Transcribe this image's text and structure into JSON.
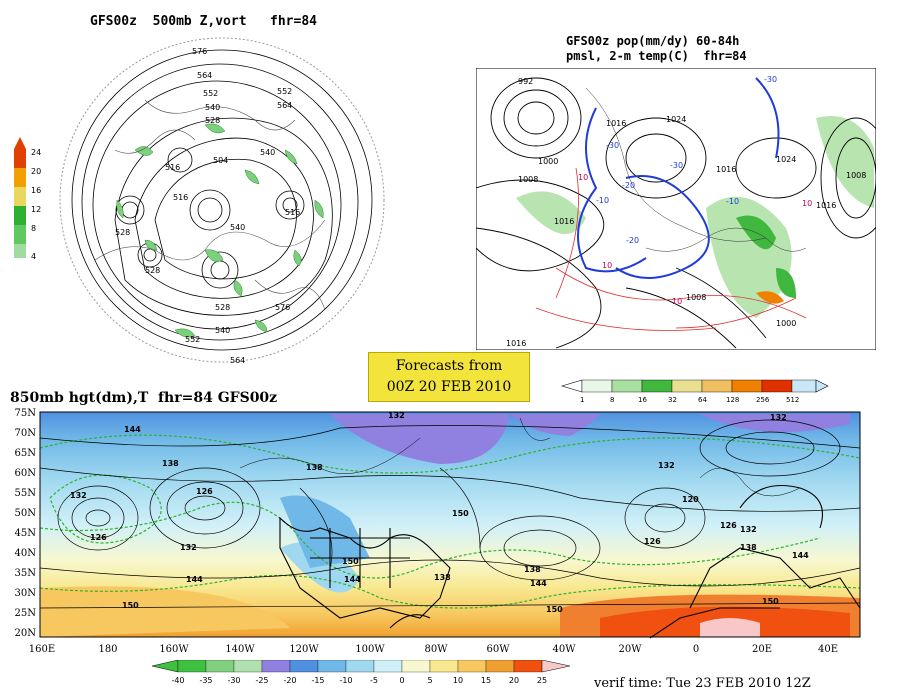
{
  "panel1": {
    "title": "GFS00z  500mb Z,vort   fhr=84",
    "contour_labels": [
      "576",
      "564",
      "552",
      "540",
      "528",
      "516",
      "504",
      "540",
      "552",
      "564",
      "528",
      "516",
      "528",
      "540",
      "552",
      "564",
      "576",
      "540",
      "516",
      "528"
    ],
    "colorbar": {
      "ticks": [
        "24",
        "20",
        "16",
        "12",
        "8",
        "4"
      ],
      "colors": [
        "#e04000",
        "#f0a000",
        "#e8d860",
        "#30b030",
        "#60c860",
        "#a0dca0"
      ]
    }
  },
  "panel2": {
    "title_line1": "GFS00z pop(mm/dy) 60-84h",
    "title_line2": "pmsl, 2-m temp(C)  fhr=84",
    "isobar_labels": [
      "992",
      "1000",
      "1008",
      "1016",
      "1024",
      "1016",
      "1008",
      "1000",
      "1016",
      "1008",
      "1016",
      "1024",
      "1016"
    ],
    "temp_labels": [
      "-30",
      "-30",
      "-20",
      "-10",
      "-10",
      "-20",
      "-30",
      "10",
      "10",
      "10",
      "10"
    ],
    "colorbar": {
      "ticks": [
        "1",
        "8",
        "16",
        "32",
        "64",
        "128",
        "256",
        "512"
      ],
      "colors": [
        "#e8f8e8",
        "#a8e0a0",
        "#40b840",
        "#e8e090",
        "#f0c060",
        "#f08000",
        "#e03000",
        "#c8e8f8"
      ]
    }
  },
  "forecast_box": {
    "line1": "Forecasts from",
    "line2": "00Z 20 FEB 2010"
  },
  "panel3": {
    "title": "850mb hgt(dm),T  fhr=84 GFS00z",
    "lat_labels": [
      "75N",
      "70N",
      "65N",
      "60N",
      "55N",
      "50N",
      "45N",
      "40N",
      "35N",
      "30N",
      "25N",
      "20N"
    ],
    "lon_labels": [
      "160E",
      "180",
      "160W",
      "140W",
      "120W",
      "100W",
      "80W",
      "60W",
      "40W",
      "20W",
      "0",
      "20E",
      "40E"
    ],
    "height_labels": [
      "144",
      "132",
      "138",
      "126",
      "132",
      "126",
      "138",
      "132",
      "144",
      "150",
      "150",
      "144",
      "138",
      "150",
      "132",
      "138",
      "144",
      "150",
      "126",
      "132",
      "120",
      "126",
      "132",
      "138",
      "144",
      "150"
    ],
    "colorbar": {
      "ticks": [
        "-40",
        "-35",
        "-30",
        "-25",
        "-20",
        "-15",
        "-10",
        "-5",
        "0",
        "5",
        "10",
        "15",
        "20",
        "25"
      ],
      "colors": [
        "#40c040",
        "#80d080",
        "#b0e0b0",
        "#9080e0",
        "#5090e0",
        "#70b8e8",
        "#a0d8f0",
        "#d0f0f8",
        "#f8f8d0",
        "#f8e890",
        "#f8c860",
        "#f0a030",
        "#f05010",
        "#f8c8c8"
      ]
    }
  },
  "verif_time": "verif time: Tue 23 FEB 2010 12Z"
}
